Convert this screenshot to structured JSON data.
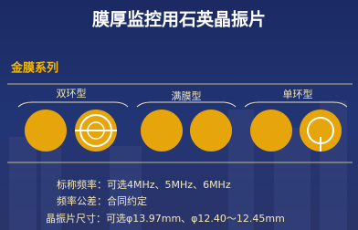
{
  "header": {
    "title": "膜厚监控用石英晶振片"
  },
  "section": "金膜系列",
  "groups": [
    {
      "label": "双环型"
    },
    {
      "label": "满膜型"
    },
    {
      "label": "单环型"
    }
  ],
  "specs": [
    "标称频率：可选4MHz、5MHz、6MHz",
    "频率公差：合同约定",
    "晶振片尺寸：可选φ13.97mm、φ12.40～12.45mm"
  ]
}
